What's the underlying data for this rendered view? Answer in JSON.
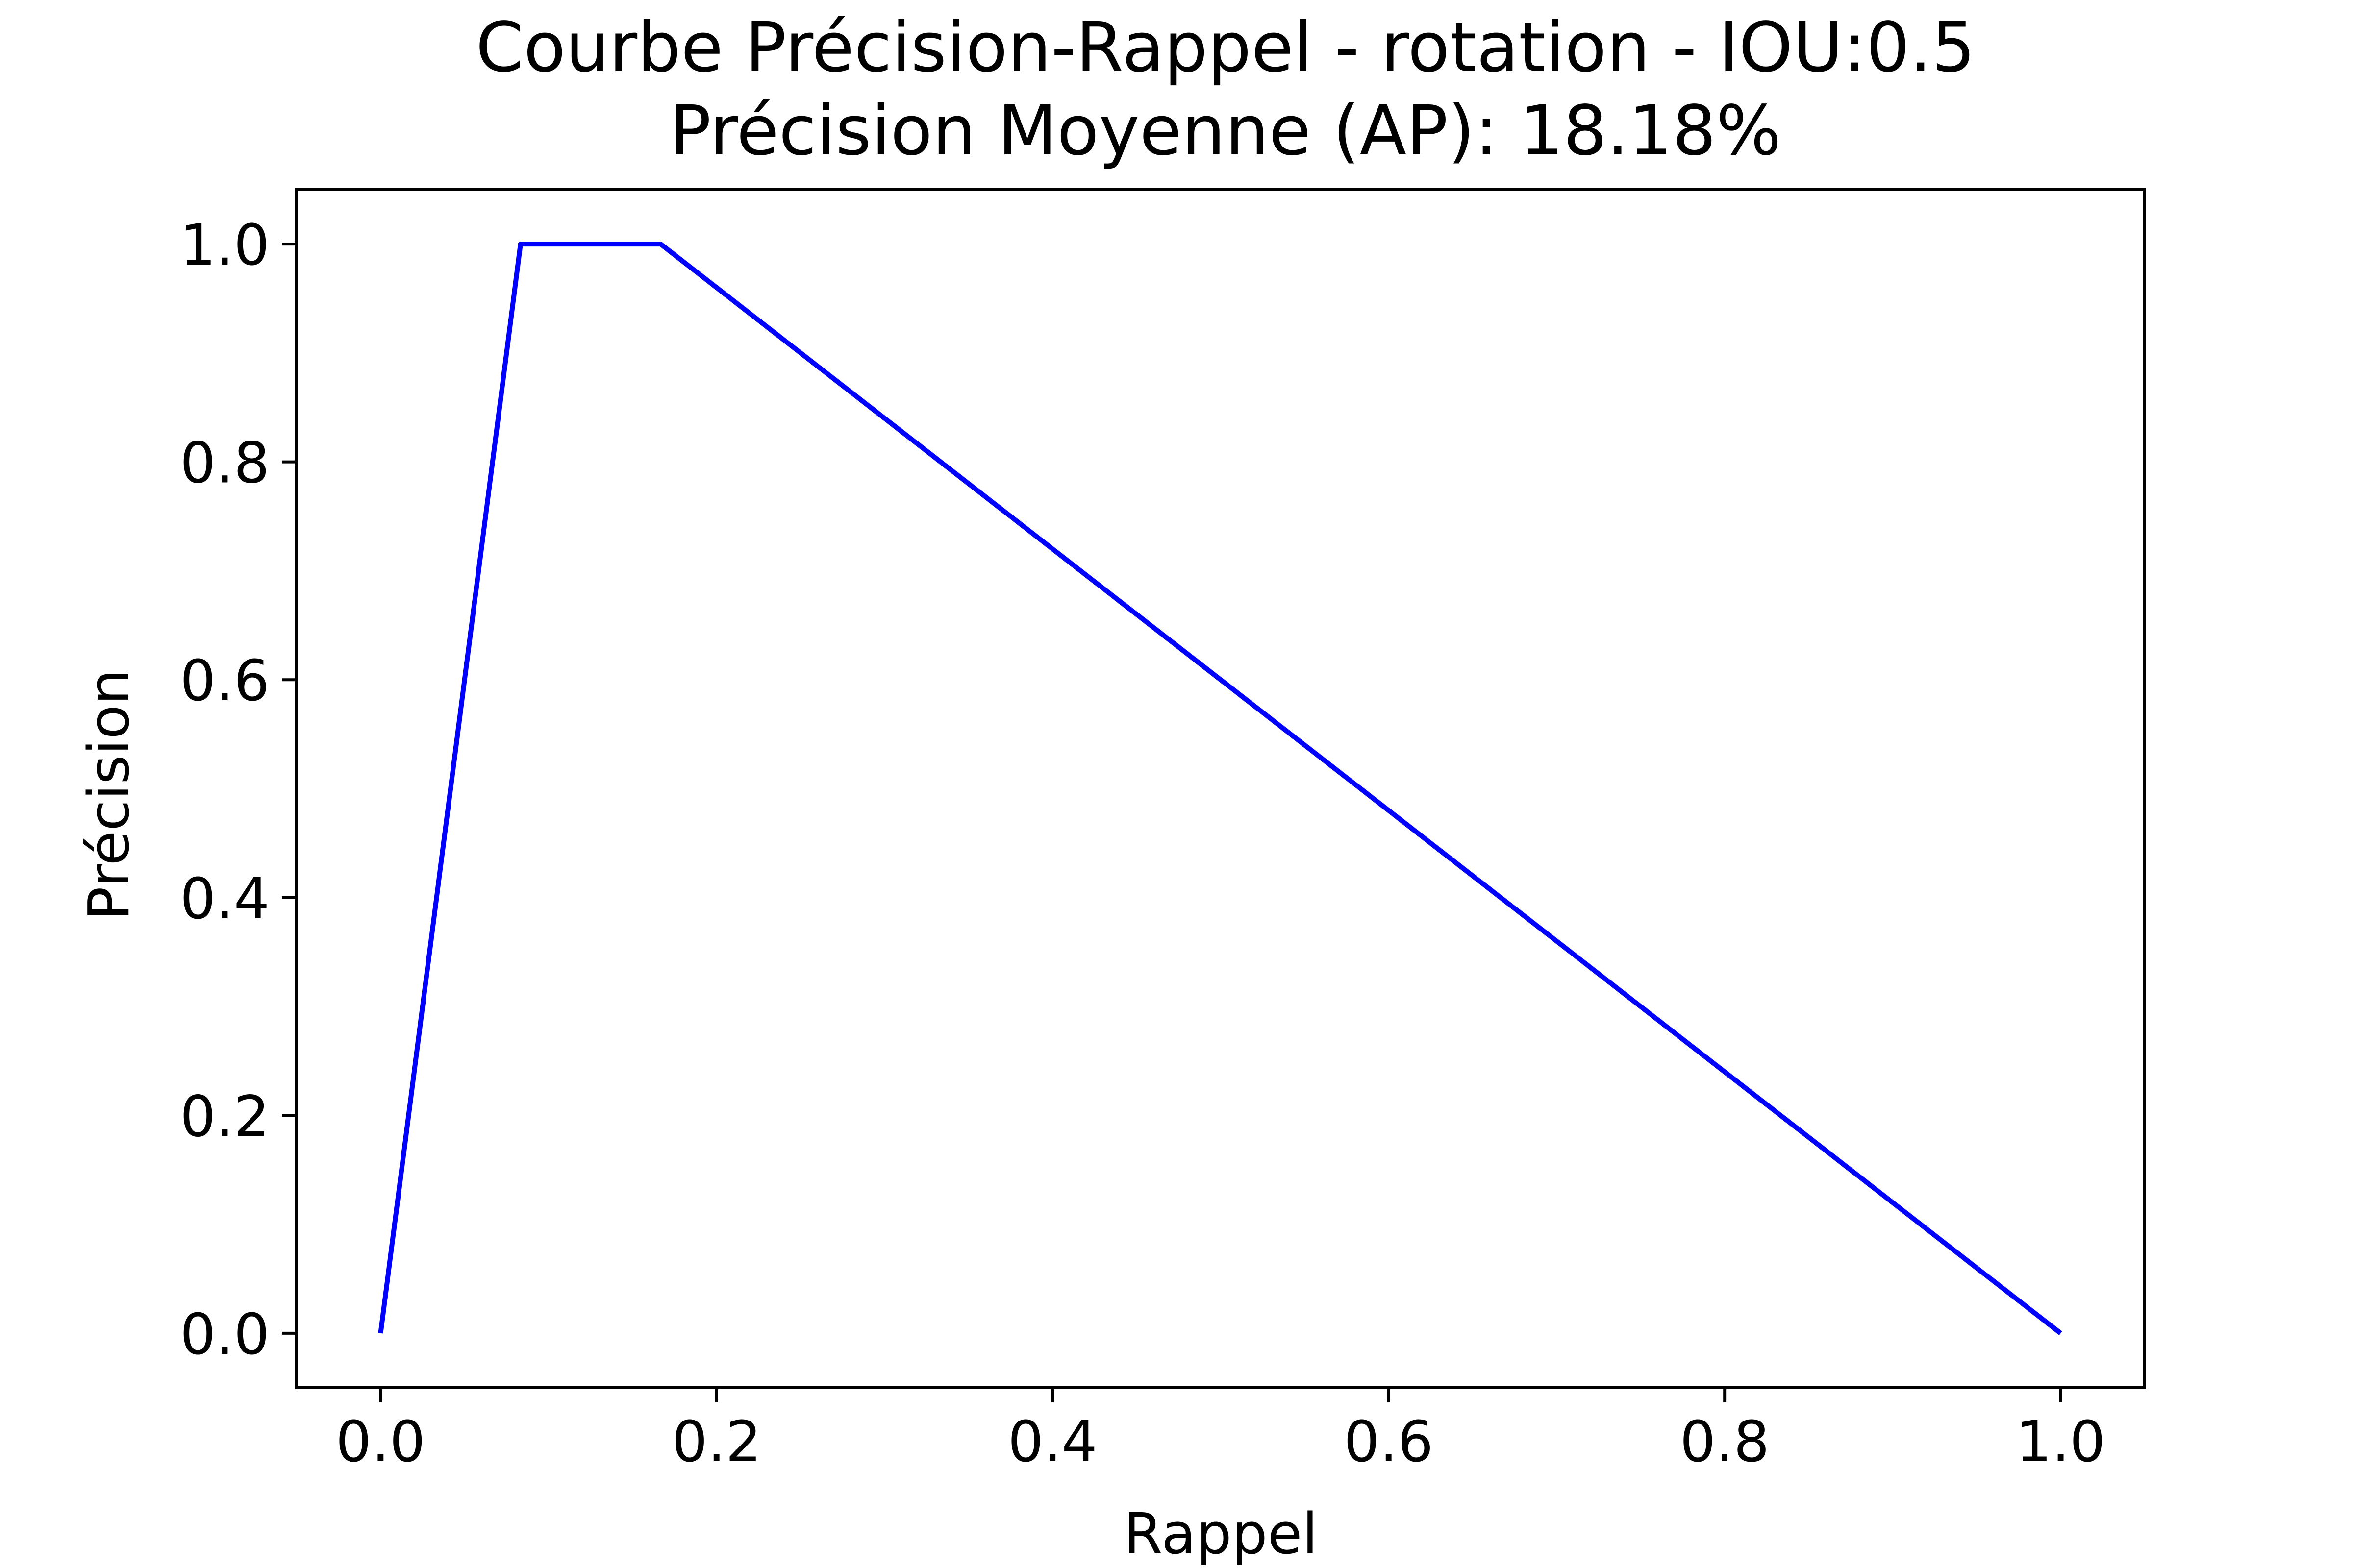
{
  "chart_data": {
    "type": "line",
    "title": "Courbe Précision-Rappel - rotation - IOU:0.5",
    "subtitle": "Précision Moyenne (AP): 18.18%",
    "xlabel": "Rappel",
    "ylabel": "Précision",
    "xlim": [
      -0.05,
      1.05
    ],
    "ylim": [
      -0.05,
      1.05
    ],
    "x_ticks": [
      "0.0",
      "0.2",
      "0.4",
      "0.6",
      "0.8",
      "1.0"
    ],
    "y_ticks": [
      "0.0",
      "0.2",
      "0.4",
      "0.6",
      "0.8",
      "1.0"
    ],
    "grid": false,
    "series": [
      {
        "color": "#0000ff",
        "points": [
          {
            "x": 0.0,
            "y": 0.0
          },
          {
            "x": 0.0833,
            "y": 1.0
          },
          {
            "x": 0.1667,
            "y": 1.0
          },
          {
            "x": 1.0,
            "y": 0.0
          }
        ]
      }
    ]
  }
}
